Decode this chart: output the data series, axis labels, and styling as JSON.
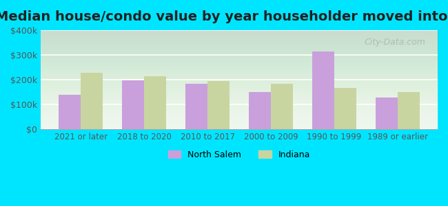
{
  "title": "Median house/condo value by year householder moved into unit",
  "categories": [
    "2021 or later",
    "2018 to 2020",
    "2010 to 2017",
    "2000 to 2009",
    "1990 to 1999",
    "1989 or earlier"
  ],
  "north_salem": [
    140000,
    197000,
    183000,
    152000,
    315000,
    128000
  ],
  "indiana": [
    228000,
    215000,
    195000,
    185000,
    168000,
    150000
  ],
  "north_salem_color": "#c9a0dc",
  "indiana_color": "#c8d5a0",
  "background_outer": "#00e5ff",
  "background_inner_top": "#e8f5e9",
  "background_inner_bottom": "#f0f8f0",
  "ylim": [
    0,
    400000
  ],
  "yticks": [
    0,
    100000,
    200000,
    300000,
    400000
  ],
  "ytick_labels": [
    "$0",
    "$100k",
    "$200k",
    "$300k",
    "$400k"
  ],
  "title_fontsize": 14,
  "legend_north_salem": "North Salem",
  "legend_indiana": "Indiana",
  "watermark": "City-Data.com"
}
